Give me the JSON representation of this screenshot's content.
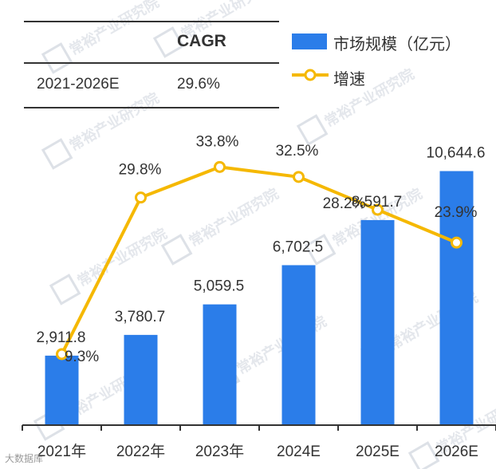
{
  "table": {
    "header": "CAGR",
    "rows": [
      {
        "period": "2021-2026E",
        "value": "29.6%"
      }
    ]
  },
  "legend": {
    "bar_label": "市场规模（亿元）",
    "line_label": "增速"
  },
  "watermark": "常裕产业研究院",
  "footer_brand": "大数据库",
  "chart_data": {
    "type": "bar",
    "categories": [
      "2021年",
      "2022年",
      "2023年",
      "2024E",
      "2025E",
      "2026E"
    ],
    "series": [
      {
        "name": "市场规模（亿元）",
        "type": "bar",
        "axis": "left",
        "values": [
          2911.8,
          3780.7,
          5059.5,
          6702.5,
          8591.7,
          10644.6
        ],
        "labels": [
          "2,911.8",
          "3,780.7",
          "5,059.5",
          "6,702.5",
          "8,591.7",
          "10,644.6"
        ]
      },
      {
        "name": "增速",
        "type": "line",
        "axis": "right",
        "values": [
          9.3,
          29.8,
          33.8,
          32.5,
          28.2,
          23.9
        ],
        "labels": [
          "9.3%",
          "29.8%",
          "33.8%",
          "32.5%",
          "28.2%",
          "23.9%"
        ]
      }
    ],
    "ylim_left": [
      0,
      12800
    ],
    "ylim_right": [
      0,
      40
    ],
    "grid": false,
    "legend_position": "top-right",
    "colors": {
      "bar": "#2b7de9",
      "line": "#f5b800",
      "marker_fill": "#ffffff",
      "axis": "#333333",
      "text": "#333333"
    }
  }
}
